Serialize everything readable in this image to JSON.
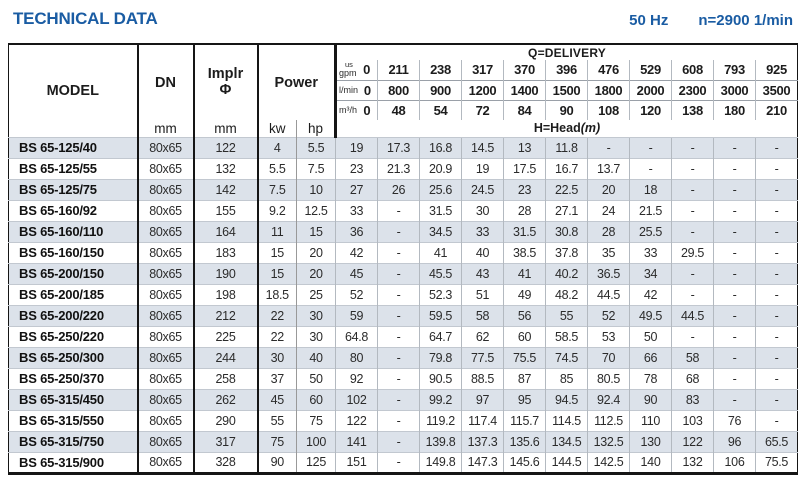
{
  "page": {
    "title": "TECHNICAL DATA",
    "frequency": "50 Hz",
    "speed": "n=2900 1/min"
  },
  "colors": {
    "accent_blue": "#1a5ca3",
    "row_stripe": "#dce2ea",
    "border_dark": "#151515"
  },
  "table": {
    "headers": {
      "model": "MODEL",
      "dn": "DN",
      "implr_line1": "Implr",
      "implr_line2": "Φ",
      "power": "Power",
      "mm": "mm",
      "kw": "kw",
      "hp": "hp",
      "q_delivery": "Q=DELIVERY",
      "h_head": "H=Head",
      "h_head_unit": "(m)",
      "unit_usgpm_line1": "us",
      "unit_usgpm_line2": "gpm",
      "unit_lmin": "l/min",
      "unit_m3h": "m³/h",
      "usgpm": [
        "0",
        "211",
        "238",
        "317",
        "370",
        "396",
        "476",
        "529",
        "608",
        "793",
        "925"
      ],
      "lmin": [
        "0",
        "800",
        "900",
        "1200",
        "1400",
        "1500",
        "1800",
        "2000",
        "2300",
        "3000",
        "3500"
      ],
      "m3h": [
        "0",
        "48",
        "54",
        "72",
        "84",
        "90",
        "108",
        "120",
        "138",
        "180",
        "210"
      ]
    },
    "rows": [
      {
        "model": "BS 65-125/40",
        "dn": "80x65",
        "implr": "122",
        "kw": "4",
        "hp": "5.5",
        "heads": [
          "19",
          "17.3",
          "16.8",
          "14.5",
          "13",
          "11.8",
          "-",
          "-",
          "-",
          "-",
          "-"
        ]
      },
      {
        "model": "BS 65-125/55",
        "dn": "80x65",
        "implr": "132",
        "kw": "5.5",
        "hp": "7.5",
        "heads": [
          "23",
          "21.3",
          "20.9",
          "19",
          "17.5",
          "16.7",
          "13.7",
          "-",
          "-",
          "-",
          "-"
        ]
      },
      {
        "model": "BS 65-125/75",
        "dn": "80x65",
        "implr": "142",
        "kw": "7.5",
        "hp": "10",
        "heads": [
          "27",
          "26",
          "25.6",
          "24.5",
          "23",
          "22.5",
          "20",
          "18",
          "-",
          "-",
          "-"
        ]
      },
      {
        "model": "BS 65-160/92",
        "dn": "80x65",
        "implr": "155",
        "kw": "9.2",
        "hp": "12.5",
        "heads": [
          "33",
          "-",
          "31.5",
          "30",
          "28",
          "27.1",
          "24",
          "21.5",
          "-",
          "-",
          "-"
        ]
      },
      {
        "model": "BS 65-160/110",
        "dn": "80x65",
        "implr": "164",
        "kw": "11",
        "hp": "15",
        "heads": [
          "36",
          "-",
          "34.5",
          "33",
          "31.5",
          "30.8",
          "28",
          "25.5",
          "-",
          "-",
          "-"
        ]
      },
      {
        "model": "BS 65-160/150",
        "dn": "80x65",
        "implr": "183",
        "kw": "15",
        "hp": "20",
        "heads": [
          "42",
          "-",
          "41",
          "40",
          "38.5",
          "37.8",
          "35",
          "33",
          "29.5",
          "-",
          "-"
        ]
      },
      {
        "model": "BS 65-200/150",
        "dn": "80x65",
        "implr": "190",
        "kw": "15",
        "hp": "20",
        "heads": [
          "45",
          "-",
          "45.5",
          "43",
          "41",
          "40.2",
          "36.5",
          "34",
          "-",
          "-",
          "-"
        ]
      },
      {
        "model": "BS 65-200/185",
        "dn": "80x65",
        "implr": "198",
        "kw": "18.5",
        "hp": "25",
        "heads": [
          "52",
          "-",
          "52.3",
          "51",
          "49",
          "48.2",
          "44.5",
          "42",
          "-",
          "-",
          "-"
        ]
      },
      {
        "model": "BS 65-200/220",
        "dn": "80x65",
        "implr": "212",
        "kw": "22",
        "hp": "30",
        "heads": [
          "59",
          "-",
          "59.5",
          "58",
          "56",
          "55",
          "52",
          "49.5",
          "44.5",
          "-",
          "-"
        ]
      },
      {
        "model": "BS 65-250/220",
        "dn": "80x65",
        "implr": "225",
        "kw": "22",
        "hp": "30",
        "heads": [
          "64.8",
          "-",
          "64.7",
          "62",
          "60",
          "58.5",
          "53",
          "50",
          "-",
          "-",
          "-"
        ]
      },
      {
        "model": "BS 65-250/300",
        "dn": "80x65",
        "implr": "244",
        "kw": "30",
        "hp": "40",
        "heads": [
          "80",
          "-",
          "79.8",
          "77.5",
          "75.5",
          "74.5",
          "70",
          "66",
          "58",
          "-",
          "-"
        ]
      },
      {
        "model": "BS 65-250/370",
        "dn": "80x65",
        "implr": "258",
        "kw": "37",
        "hp": "50",
        "heads": [
          "92",
          "-",
          "90.5",
          "88.5",
          "87",
          "85",
          "80.5",
          "78",
          "68",
          "-",
          "-"
        ]
      },
      {
        "model": "BS 65-315/450",
        "dn": "80x65",
        "implr": "262",
        "kw": "45",
        "hp": "60",
        "heads": [
          "102",
          "-",
          "99.2",
          "97",
          "95",
          "94.5",
          "92.4",
          "90",
          "83",
          "-",
          "-"
        ]
      },
      {
        "model": "BS 65-315/550",
        "dn": "80x65",
        "implr": "290",
        "kw": "55",
        "hp": "75",
        "heads": [
          "122",
          "-",
          "119.2",
          "117.4",
          "115.7",
          "114.5",
          "112.5",
          "110",
          "103",
          "76",
          "-"
        ]
      },
      {
        "model": "BS 65-315/750",
        "dn": "80x65",
        "implr": "317",
        "kw": "75",
        "hp": "100",
        "heads": [
          "141",
          "-",
          "139.8",
          "137.3",
          "135.6",
          "134.5",
          "132.5",
          "130",
          "122",
          "96",
          "65.5"
        ]
      },
      {
        "model": "BS 65-315/900",
        "dn": "80x65",
        "implr": "328",
        "kw": "90",
        "hp": "125",
        "heads": [
          "151",
          "-",
          "149.8",
          "147.3",
          "145.6",
          "144.5",
          "142.5",
          "140",
          "132",
          "106",
          "75.5"
        ]
      }
    ]
  }
}
